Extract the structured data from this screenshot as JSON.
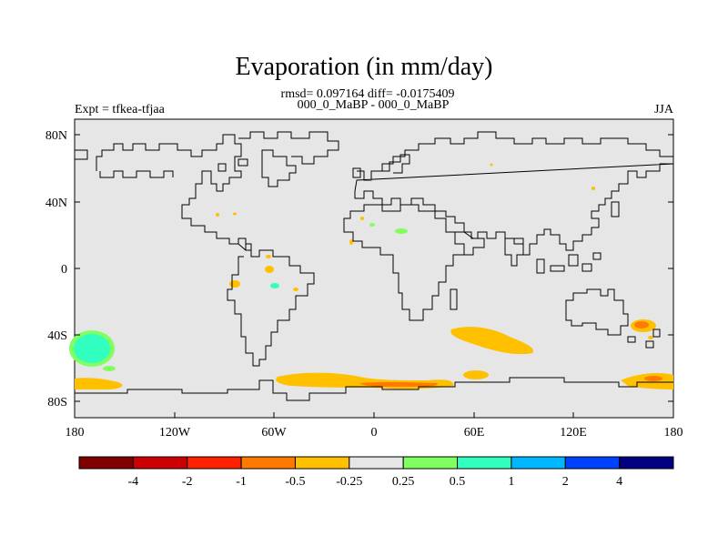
{
  "title": "Evaporation (in mm/day)",
  "stats": "rmsd= 0.097164 diff= -0.0175409",
  "period": "000_0_MaBP - 000_0_MaBP",
  "left_label": "Expt = tfkea-tfjaa",
  "right_label": "JJA",
  "y_ticks": [
    "80N",
    "40N",
    "0",
    "40S",
    "80S"
  ],
  "x_ticks": [
    "180",
    "120W",
    "60W",
    "0",
    "60E",
    "120E",
    "180"
  ],
  "colorbar": {
    "colors": [
      "#800000",
      "#cc0000",
      "#ff2000",
      "#ff7a00",
      "#ffc000",
      "#e6e6e6",
      "#80ff60",
      "#30ffc0",
      "#00b8ff",
      "#0040ff",
      "#000080"
    ],
    "labels": [
      "-4",
      "-2",
      "-1",
      "-0.5",
      "-0.25",
      "0.25",
      "0.5",
      "1",
      "2",
      "4"
    ]
  },
  "colors": {
    "land_ocean_fill": "#e6e6e6",
    "coastline": "#000000"
  }
}
